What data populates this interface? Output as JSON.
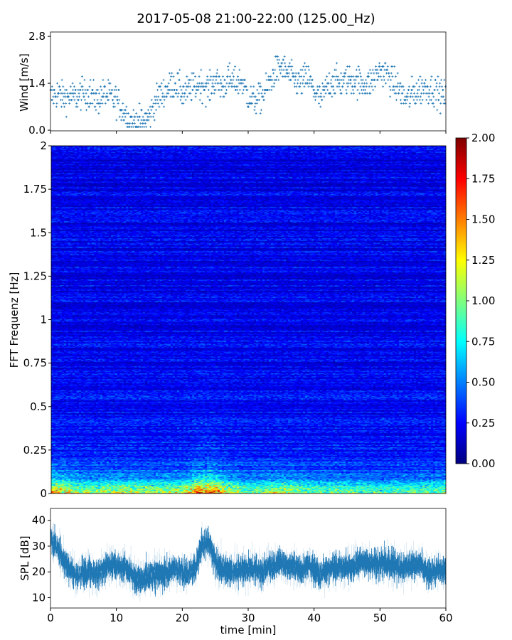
{
  "chart_data": [
    {
      "type": "scatter",
      "title": "2017-05-08 21:00-22:00 (125.00_Hz)",
      "ylabel": "Wind [m/s]",
      "xlim": [
        0,
        60
      ],
      "ylim": [
        -0.02,
        2.93
      ],
      "yticks": [
        "0.0",
        "1.4",
        "2.8"
      ],
      "marker": "+",
      "color": "#1f77b4",
      "x_min": [
        0,
        1,
        2,
        3,
        4,
        5,
        6,
        7,
        8,
        9,
        10,
        11,
        12,
        13,
        14,
        15,
        16,
        17,
        18,
        19,
        20,
        21,
        22,
        23,
        24,
        25,
        26,
        27,
        28,
        29,
        30,
        31,
        32,
        33,
        34,
        35,
        36,
        37,
        38,
        39,
        40,
        41,
        42,
        43,
        44,
        45,
        46,
        47,
        48,
        49,
        50,
        51,
        52,
        53,
        54,
        55,
        56,
        57,
        58,
        59,
        60
      ],
      "wind_median": [
        1.0,
        1.1,
        1.0,
        1.0,
        1.0,
        1.1,
        1.1,
        0.9,
        1.1,
        1.0,
        0.9,
        0.6,
        0.3,
        0.25,
        0.25,
        0.4,
        0.9,
        1.1,
        1.3,
        1.4,
        1.1,
        1.2,
        1.3,
        1.4,
        1.2,
        1.5,
        1.3,
        1.5,
        1.4,
        1.5,
        1.0,
        0.9,
        1.0,
        1.3,
        1.7,
        1.9,
        1.7,
        1.5,
        1.4,
        1.6,
        1.2,
        0.9,
        1.3,
        1.5,
        1.4,
        1.5,
        1.5,
        1.4,
        1.4,
        1.5,
        1.8,
        1.7,
        1.4,
        1.2,
        0.9,
        1.1,
        1.2,
        1.3,
        1.2,
        1.1,
        1.0
      ]
    },
    {
      "type": "heatmap",
      "ylabel": "FFT Frequenz [Hz]",
      "xlim": [
        0,
        60
      ],
      "ylim": [
        0,
        2
      ],
      "yticks": [
        "0",
        "0.25",
        "0.5",
        "0.75",
        "1",
        "1.25",
        "1.5",
        "1.75",
        "2"
      ],
      "colormap": "jet",
      "colorbar": {
        "range": [
          0,
          2
        ],
        "ticks": [
          "0.00",
          "0.25",
          "0.50",
          "0.75",
          "1.00",
          "1.25",
          "1.50",
          "1.75",
          "2.00"
        ]
      },
      "x_min": [
        0,
        5,
        10,
        15,
        20,
        22,
        24,
        26,
        30,
        35,
        40,
        45,
        50,
        55,
        60
      ],
      "low_freq_intensity": [
        1.3,
        0.9,
        1.0,
        0.9,
        1.0,
        1.4,
        1.5,
        1.1,
        0.8,
        1.0,
        0.8,
        0.8,
        0.7,
        0.8,
        0.8
      ],
      "background_intensity": 0.22
    },
    {
      "type": "area",
      "ylabel": "SPL [dB]",
      "xlabel": "time [min]",
      "xlim": [
        0,
        60
      ],
      "ylim": [
        6,
        44.6
      ],
      "xticks": [
        "0",
        "10",
        "20",
        "30",
        "40",
        "50",
        "60"
      ],
      "yticks": [
        "10",
        "20",
        "30",
        "40"
      ],
      "color": "#1f77b4",
      "x_min": [
        0,
        1,
        2,
        3,
        4,
        5,
        6,
        7,
        8,
        9,
        10,
        11,
        12,
        13,
        14,
        15,
        16,
        17,
        18,
        19,
        20,
        21,
        22,
        23,
        24,
        25,
        26,
        27,
        28,
        29,
        30,
        31,
        32,
        33,
        34,
        35,
        36,
        37,
        38,
        39,
        40,
        41,
        42,
        43,
        44,
        45,
        46,
        47,
        48,
        49,
        50,
        51,
        52,
        53,
        54,
        55,
        56,
        57,
        58,
        59,
        60
      ],
      "spl_median": [
        33,
        30,
        24,
        21,
        19,
        20,
        20,
        18,
        21,
        23,
        22,
        22,
        20,
        17,
        17,
        18,
        20,
        19,
        20,
        21,
        20,
        20,
        21,
        31,
        31,
        24,
        22,
        20,
        20,
        21,
        21,
        21,
        19,
        22,
        22,
        24,
        22,
        22,
        21,
        22,
        21,
        19,
        21,
        21,
        22,
        22,
        22,
        24,
        24,
        23,
        23,
        23,
        23,
        22,
        22,
        22,
        23,
        20,
        20,
        21,
        20
      ]
    }
  ]
}
